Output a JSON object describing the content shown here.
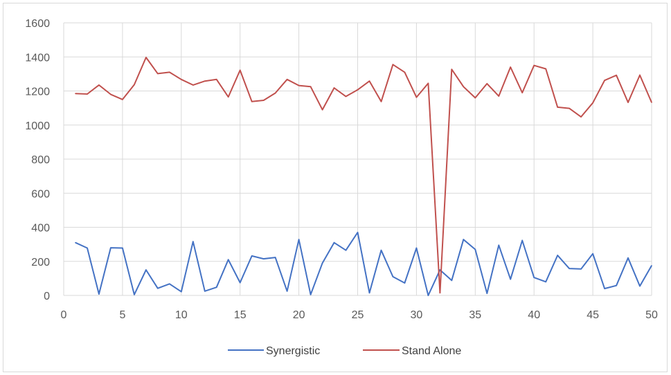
{
  "chart_data": {
    "type": "line",
    "title": "",
    "xlabel": "",
    "ylabel": "",
    "xlim": [
      0,
      50
    ],
    "ylim": [
      0,
      1600
    ],
    "x_ticks": [
      0,
      5,
      10,
      15,
      20,
      25,
      30,
      35,
      40,
      45,
      50
    ],
    "y_ticks": [
      0,
      200,
      400,
      600,
      800,
      1000,
      1200,
      1400,
      1600
    ],
    "grid": true,
    "legend_position": "bottom",
    "x": [
      1,
      2,
      3,
      4,
      5,
      6,
      7,
      8,
      9,
      10,
      11,
      12,
      13,
      14,
      15,
      16,
      17,
      18,
      19,
      20,
      21,
      22,
      23,
      24,
      25,
      26,
      27,
      28,
      29,
      30,
      31,
      32,
      33,
      34,
      35,
      36,
      37,
      38,
      39,
      40,
      41,
      42,
      43,
      44,
      45,
      46,
      47,
      48,
      49,
      50
    ],
    "series": [
      {
        "name": "Synergistic",
        "color": "#4472c4",
        "values": [
          310,
          278,
          8,
          280,
          278,
          5,
          150,
          42,
          68,
          22,
          316,
          25,
          48,
          210,
          75,
          232,
          215,
          223,
          25,
          328,
          5,
          190,
          310,
          265,
          370,
          15,
          265,
          110,
          73,
          278,
          0,
          150,
          88,
          328,
          270,
          12,
          295,
          95,
          323,
          105,
          80,
          235,
          158,
          155,
          245,
          40,
          58,
          220,
          55,
          175
        ]
      },
      {
        "name": "Stand Alone",
        "color": "#c0504d",
        "values": [
          1185,
          1182,
          1235,
          1180,
          1150,
          1237,
          1397,
          1302,
          1310,
          1268,
          1235,
          1258,
          1268,
          1165,
          1322,
          1138,
          1145,
          1188,
          1268,
          1232,
          1225,
          1090,
          1218,
          1168,
          1207,
          1258,
          1138,
          1355,
          1310,
          1163,
          1245,
          15,
          1327,
          1225,
          1160,
          1243,
          1170,
          1340,
          1190,
          1350,
          1330,
          1105,
          1098,
          1048,
          1130,
          1262,
          1292,
          1133,
          1293,
          1133
        ]
      }
    ]
  }
}
